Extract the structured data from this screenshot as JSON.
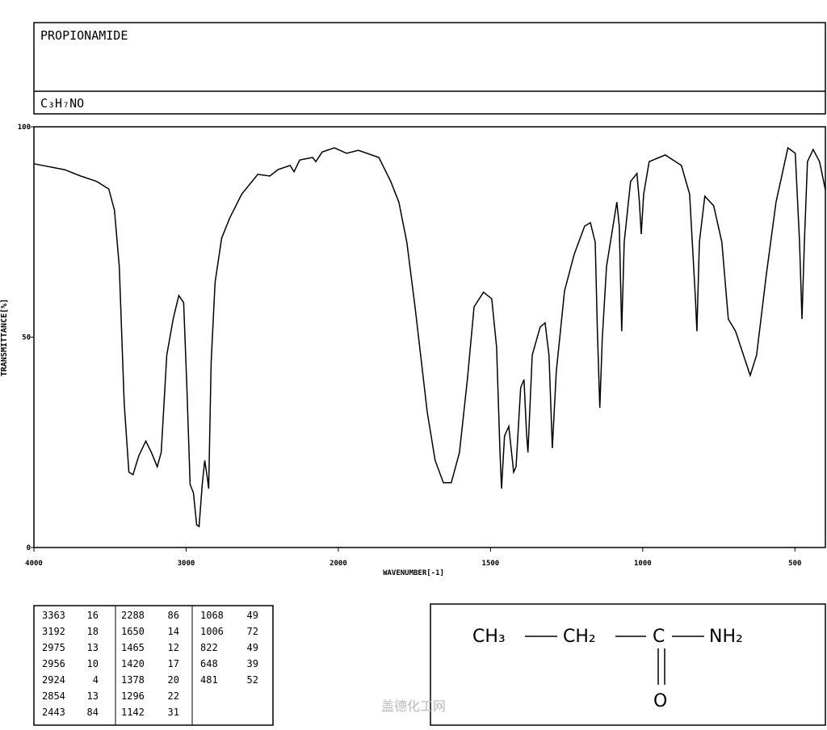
{
  "header": {
    "name": "PROPIONAMIDE",
    "formula": "C₃H₇NO"
  },
  "chart_data": {
    "type": "line",
    "ylabel": "TRANSMITTANCE[%]",
    "xlabel": "WAVENUMBER[-1]",
    "xlim": [
      4000,
      400
    ],
    "x_scale_break": 2000,
    "x_scale_factor": 2,
    "xticks": [
      4000,
      3000,
      2000,
      1500,
      1000,
      500
    ],
    "ylim": [
      0,
      100
    ],
    "yticks": [
      0,
      50,
      100
    ],
    "color": "#000000",
    "x": [
      4000,
      3799,
      3693,
      3587,
      3508,
      3471,
      3439,
      3407,
      3376,
      3349,
      3312,
      3265,
      3228,
      3190,
      3164,
      3127,
      3085,
      3048,
      3016,
      2995,
      2974,
      2952,
      2931,
      2915,
      2894,
      2878,
      2862,
      2852,
      2836,
      2810,
      2767,
      2714,
      2635,
      2529,
      2450,
      2397,
      2317,
      2291,
      2254,
      2169,
      2148,
      2106,
      2026,
      1973,
      1934,
      1867,
      1828,
      1801,
      1775,
      1748,
      1708,
      1682,
      1655,
      1629,
      1602,
      1576,
      1554,
      1523,
      1496,
      1480,
      1469,
      1464,
      1454,
      1440,
      1424,
      1416,
      1401,
      1390,
      1382,
      1377,
      1363,
      1337,
      1321,
      1308,
      1297,
      1284,
      1257,
      1225,
      1191,
      1172,
      1156,
      1149,
      1141,
      1133,
      1119,
      1085,
      1077,
      1069,
      1061,
      1040,
      1019,
      1011,
      1005,
      997,
      979,
      926,
      873,
      846,
      827,
      822,
      814,
      796,
      767,
      740,
      719,
      695,
      669,
      647,
      626,
      594,
      562,
      523,
      499,
      485,
      477,
      469,
      459,
      440,
      419,
      400
    ],
    "values": [
      91.2,
      89.8,
      88.3,
      87,
      85.2,
      80.2,
      66.8,
      34.2,
      17.9,
      17.3,
      21.7,
      25.3,
      22.6,
      19.2,
      22.6,
      45.7,
      54.3,
      59.9,
      58.2,
      38,
      15,
      13,
      5.4,
      5,
      15,
      20.7,
      16.9,
      14,
      43.8,
      63,
      73.5,
      78.3,
      84,
      88.7,
      88.3,
      89.8,
      90.8,
      89.3,
      92.1,
      92.7,
      91.7,
      94,
      95,
      93.7,
      94.4,
      92.7,
      87,
      82.1,
      72.6,
      57.2,
      32.2,
      20.7,
      15.4,
      15.4,
      22.6,
      39.9,
      57.2,
      60.7,
      59.1,
      47.6,
      22.6,
      14,
      26.5,
      28.8,
      17.9,
      19.2,
      38,
      39.9,
      27.4,
      22.6,
      45.7,
      52.4,
      53.4,
      45.7,
      23.6,
      41.8,
      61,
      69.7,
      76.4,
      77.2,
      72.6,
      51.4,
      33.2,
      49.5,
      66.8,
      82.1,
      76.4,
      51.4,
      72.6,
      87,
      88.9,
      82.1,
      74.5,
      84,
      91.7,
      93.3,
      90.8,
      84,
      59.1,
      51.4,
      72.6,
      83.5,
      81.2,
      72.6,
      54.3,
      51.4,
      45.7,
      40.9,
      45.7,
      64.9,
      82.1,
      95,
      93.7,
      72.6,
      54.3,
      72.6,
      91.7,
      94.6,
      91.7,
      85
    ]
  },
  "peak_table": {
    "columns": [
      [
        [
          3363,
          16
        ],
        [
          3192,
          18
        ],
        [
          2975,
          13
        ],
        [
          2956,
          10
        ],
        [
          2924,
          4
        ],
        [
          2854,
          13
        ],
        [
          2443,
          84
        ]
      ],
      [
        [
          2288,
          86
        ],
        [
          1650,
          14
        ],
        [
          1465,
          12
        ],
        [
          1420,
          17
        ],
        [
          1378,
          20
        ],
        [
          1296,
          22
        ],
        [
          1142,
          31
        ]
      ],
      [
        [
          1068,
          49
        ],
        [
          1006,
          72
        ],
        [
          822,
          49
        ],
        [
          648,
          39
        ],
        [
          481,
          52
        ]
      ]
    ]
  },
  "structure": {
    "groups": [
      "CH₃",
      "CH₂",
      "C",
      "NH₂"
    ],
    "oxygen": "O"
  },
  "watermark": "盖德化工网"
}
